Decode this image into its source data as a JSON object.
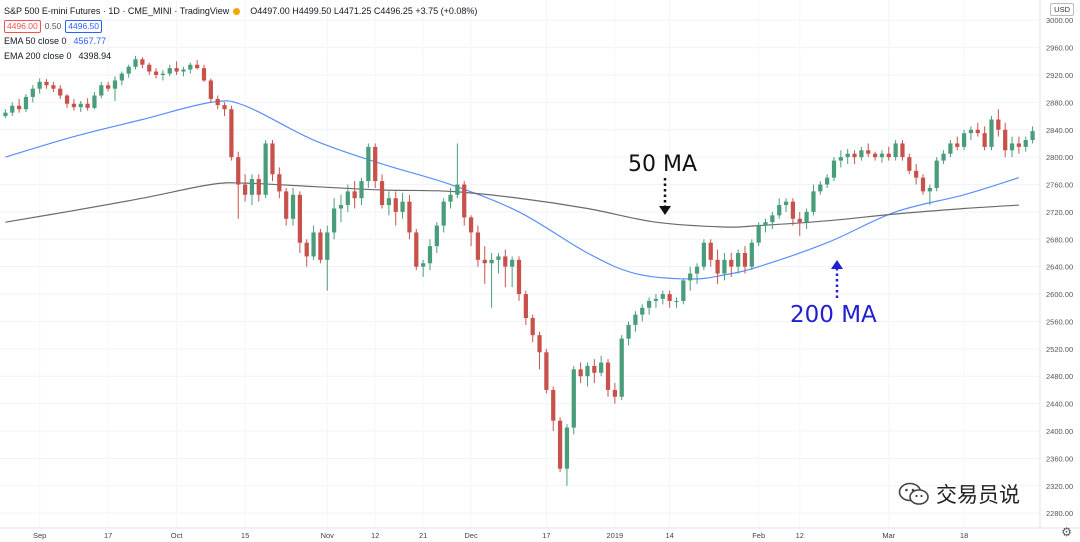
{
  "header": {
    "symbol": "S&P 500 E-mini Futures · 1D · CME_MINI · TradingView",
    "ohlc": "O4497.00 H4499.50 L4471.25 C4496.25 +3.75 (+0.08%)",
    "bid": "4496.00",
    "spread": "0.50",
    "ask": "4496.50",
    "ema50_label": "EMA 50 close 0",
    "ema50_value": "4567.77",
    "ema200_label": "EMA 200 close 0",
    "ema200_value": "4398.94"
  },
  "currency": "USD",
  "watermark": "交易员说",
  "colors": {
    "up": "#26a69a",
    "down": "#ef5350",
    "up_body": "#4a9d7a",
    "down_body": "#c8524b",
    "ema50": "#5b8ff9",
    "ema200": "#6b6b6b",
    "annotation_blue": "#2020d0"
  },
  "icons": {
    "gear": "gear-icon",
    "watermark": "wechat-icon"
  },
  "chart_data": {
    "type": "candlestick",
    "ylim": [
      2270,
      3010
    ],
    "y_ticks": [
      3000,
      2960,
      2920,
      2880,
      2840,
      2800,
      2760,
      2720,
      2680,
      2640,
      2600,
      2560,
      2520,
      2480,
      2440,
      2400,
      2360,
      2320,
      2280
    ],
    "x_ticks": [
      {
        "label": "Sep",
        "index": 5
      },
      {
        "label": "17",
        "index": 15
      },
      {
        "label": "Oct",
        "index": 25
      },
      {
        "label": "15",
        "index": 35
      },
      {
        "label": "Nov",
        "index": 47
      },
      {
        "label": "12",
        "index": 54
      },
      {
        "label": "21",
        "index": 61
      },
      {
        "label": "Dec",
        "index": 68
      },
      {
        "label": "17",
        "index": 79
      },
      {
        "label": "2019",
        "index": 89
      },
      {
        "label": "14",
        "index": 97
      },
      {
        "label": "Feb",
        "index": 110
      },
      {
        "label": "12",
        "index": 116
      },
      {
        "label": "Mar",
        "index": 129
      },
      {
        "label": "18",
        "index": 140
      }
    ],
    "annotations": [
      {
        "text": "50 MA",
        "points_to": "ema200 line",
        "color": "#111111"
      },
      {
        "text": "200 MA",
        "points_to": "ema50 line",
        "color": "#2020d0"
      }
    ],
    "series": [
      {
        "name": "EMA 50 close 0",
        "kind": "line",
        "x": [
          0,
          10,
          20,
          30,
          35,
          45,
          55,
          65,
          75,
          85,
          92,
          100,
          105,
          110,
          120,
          130,
          140,
          148
        ],
        "y": [
          2800,
          2830,
          2855,
          2880,
          2875,
          2825,
          2790,
          2760,
          2720,
          2660,
          2630,
          2622,
          2628,
          2640,
          2675,
          2720,
          2745,
          2770
        ]
      },
      {
        "name": "EMA 200 close 0",
        "kind": "line",
        "x": [
          0,
          10,
          20,
          30,
          35,
          45,
          55,
          65,
          75,
          85,
          95,
          105,
          110,
          120,
          130,
          140,
          148
        ],
        "y": [
          2705,
          2722,
          2740,
          2760,
          2762,
          2757,
          2752,
          2750,
          2740,
          2725,
          2705,
          2698,
          2700,
          2707,
          2717,
          2725,
          2730
        ]
      },
      {
        "name": "ES",
        "kind": "candles",
        "ohlc": [
          [
            2860,
            2870,
            2857,
            2865
          ],
          [
            2865,
            2880,
            2860,
            2875
          ],
          [
            2875,
            2885,
            2865,
            2870
          ],
          [
            2870,
            2892,
            2866,
            2888
          ],
          [
            2888,
            2905,
            2880,
            2900
          ],
          [
            2900,
            2915,
            2893,
            2910
          ],
          [
            2910,
            2914,
            2900,
            2905
          ],
          [
            2905,
            2910,
            2895,
            2900
          ],
          [
            2900,
            2905,
            2885,
            2890
          ],
          [
            2890,
            2892,
            2872,
            2878
          ],
          [
            2878,
            2885,
            2868,
            2873
          ],
          [
            2873,
            2882,
            2866,
            2878
          ],
          [
            2878,
            2886,
            2868,
            2872
          ],
          [
            2872,
            2895,
            2870,
            2890
          ],
          [
            2890,
            2910,
            2886,
            2905
          ],
          [
            2905,
            2910,
            2896,
            2900
          ],
          [
            2900,
            2918,
            2882,
            2912
          ],
          [
            2912,
            2925,
            2905,
            2922
          ],
          [
            2922,
            2935,
            2916,
            2932
          ],
          [
            2932,
            2948,
            2928,
            2943
          ],
          [
            2943,
            2946,
            2930,
            2935
          ],
          [
            2935,
            2938,
            2920,
            2925
          ],
          [
            2925,
            2930,
            2915,
            2920
          ],
          [
            2920,
            2927,
            2912,
            2922
          ],
          [
            2922,
            2935,
            2918,
            2930
          ],
          [
            2930,
            2940,
            2920,
            2925
          ],
          [
            2925,
            2932,
            2918,
            2928
          ],
          [
            2928,
            2938,
            2922,
            2935
          ],
          [
            2935,
            2942,
            2928,
            2930
          ],
          [
            2930,
            2935,
            2910,
            2912
          ],
          [
            2912,
            2915,
            2880,
            2885
          ],
          [
            2885,
            2890,
            2870,
            2876
          ],
          [
            2876,
            2880,
            2860,
            2870
          ],
          [
            2870,
            2875,
            2795,
            2800
          ],
          [
            2800,
            2808,
            2710,
            2760
          ],
          [
            2760,
            2775,
            2735,
            2745
          ],
          [
            2745,
            2775,
            2730,
            2768
          ],
          [
            2768,
            2775,
            2735,
            2745
          ],
          [
            2745,
            2825,
            2740,
            2820
          ],
          [
            2820,
            2825,
            2765,
            2775
          ],
          [
            2775,
            2785,
            2740,
            2750
          ],
          [
            2750,
            2755,
            2700,
            2710
          ],
          [
            2710,
            2755,
            2700,
            2745
          ],
          [
            2745,
            2750,
            2660,
            2675
          ],
          [
            2675,
            2680,
            2640,
            2655
          ],
          [
            2655,
            2700,
            2650,
            2690
          ],
          [
            2690,
            2695,
            2645,
            2650
          ],
          [
            2650,
            2700,
            2605,
            2690
          ],
          [
            2690,
            2740,
            2680,
            2725
          ],
          [
            2725,
            2745,
            2705,
            2730
          ],
          [
            2730,
            2760,
            2720,
            2750
          ],
          [
            2750,
            2765,
            2725,
            2740
          ],
          [
            2740,
            2770,
            2730,
            2765
          ],
          [
            2765,
            2820,
            2755,
            2815
          ],
          [
            2815,
            2820,
            2755,
            2765
          ],
          [
            2765,
            2775,
            2725,
            2730
          ],
          [
            2730,
            2750,
            2715,
            2740
          ],
          [
            2740,
            2750,
            2700,
            2720
          ],
          [
            2720,
            2748,
            2710,
            2735
          ],
          [
            2735,
            2745,
            2680,
            2690
          ],
          [
            2690,
            2695,
            2635,
            2640
          ],
          [
            2640,
            2650,
            2625,
            2645
          ],
          [
            2645,
            2680,
            2635,
            2670
          ],
          [
            2670,
            2705,
            2660,
            2700
          ],
          [
            2700,
            2740,
            2690,
            2735
          ],
          [
            2735,
            2755,
            2725,
            2745
          ],
          [
            2745,
            2820,
            2740,
            2760
          ],
          [
            2760,
            2765,
            2700,
            2712
          ],
          [
            2712,
            2715,
            2670,
            2690
          ],
          [
            2690,
            2700,
            2640,
            2650
          ],
          [
            2650,
            2670,
            2615,
            2645
          ],
          [
            2645,
            2660,
            2580,
            2650
          ],
          [
            2650,
            2660,
            2630,
            2655
          ],
          [
            2655,
            2665,
            2610,
            2640
          ],
          [
            2640,
            2655,
            2610,
            2650
          ],
          [
            2650,
            2655,
            2590,
            2600
          ],
          [
            2600,
            2605,
            2555,
            2565
          ],
          [
            2565,
            2570,
            2530,
            2540
          ],
          [
            2540,
            2545,
            2490,
            2515
          ],
          [
            2515,
            2520,
            2455,
            2460
          ],
          [
            2460,
            2465,
            2400,
            2415
          ],
          [
            2415,
            2420,
            2340,
            2345
          ],
          [
            2345,
            2410,
            2320,
            2405
          ],
          [
            2405,
            2495,
            2395,
            2490
          ],
          [
            2490,
            2500,
            2470,
            2480
          ],
          [
            2480,
            2500,
            2465,
            2495
          ],
          [
            2495,
            2505,
            2470,
            2485
          ],
          [
            2485,
            2510,
            2480,
            2500
          ],
          [
            2500,
            2505,
            2450,
            2460
          ],
          [
            2460,
            2470,
            2440,
            2450
          ],
          [
            2450,
            2540,
            2445,
            2535
          ],
          [
            2535,
            2560,
            2525,
            2555
          ],
          [
            2555,
            2575,
            2545,
            2570
          ],
          [
            2570,
            2585,
            2560,
            2580
          ],
          [
            2580,
            2595,
            2570,
            2590
          ],
          [
            2590,
            2600,
            2580,
            2593
          ],
          [
            2593,
            2605,
            2585,
            2600
          ],
          [
            2600,
            2605,
            2580,
            2590
          ],
          [
            2590,
            2595,
            2580,
            2590
          ],
          [
            2590,
            2622,
            2585,
            2620
          ],
          [
            2620,
            2640,
            2605,
            2630
          ],
          [
            2630,
            2645,
            2615,
            2640
          ],
          [
            2640,
            2680,
            2635,
            2675
          ],
          [
            2675,
            2680,
            2640,
            2650
          ],
          [
            2650,
            2665,
            2615,
            2630
          ],
          [
            2630,
            2660,
            2620,
            2650
          ],
          [
            2650,
            2660,
            2625,
            2640
          ],
          [
            2640,
            2665,
            2630,
            2660
          ],
          [
            2660,
            2670,
            2630,
            2640
          ],
          [
            2640,
            2680,
            2635,
            2675
          ],
          [
            2675,
            2705,
            2670,
            2700
          ],
          [
            2700,
            2710,
            2690,
            2705
          ],
          [
            2705,
            2720,
            2695,
            2715
          ],
          [
            2715,
            2740,
            2710,
            2730
          ],
          [
            2730,
            2740,
            2720,
            2735
          ],
          [
            2735,
            2740,
            2700,
            2710
          ],
          [
            2710,
            2720,
            2685,
            2705
          ],
          [
            2705,
            2725,
            2695,
            2720
          ],
          [
            2720,
            2760,
            2715,
            2750
          ],
          [
            2750,
            2765,
            2745,
            2760
          ],
          [
            2760,
            2775,
            2755,
            2770
          ],
          [
            2770,
            2800,
            2765,
            2795
          ],
          [
            2795,
            2810,
            2785,
            2800
          ],
          [
            2800,
            2812,
            2790,
            2805
          ],
          [
            2805,
            2810,
            2790,
            2800
          ],
          [
            2800,
            2815,
            2795,
            2810
          ],
          [
            2810,
            2820,
            2800,
            2805
          ],
          [
            2805,
            2808,
            2795,
            2800
          ],
          [
            2800,
            2810,
            2792,
            2805
          ],
          [
            2805,
            2815,
            2795,
            2800
          ],
          [
            2800,
            2825,
            2795,
            2820
          ],
          [
            2820,
            2825,
            2795,
            2800
          ],
          [
            2800,
            2805,
            2775,
            2780
          ],
          [
            2780,
            2790,
            2760,
            2770
          ],
          [
            2770,
            2775,
            2745,
            2750
          ],
          [
            2750,
            2760,
            2730,
            2755
          ],
          [
            2755,
            2800,
            2750,
            2795
          ],
          [
            2795,
            2810,
            2790,
            2805
          ],
          [
            2805,
            2825,
            2800,
            2820
          ],
          [
            2820,
            2830,
            2810,
            2815
          ],
          [
            2815,
            2840,
            2810,
            2835
          ],
          [
            2835,
            2845,
            2825,
            2840
          ],
          [
            2840,
            2850,
            2830,
            2835
          ],
          [
            2835,
            2845,
            2810,
            2815
          ],
          [
            2815,
            2860,
            2810,
            2855
          ],
          [
            2855,
            2870,
            2830,
            2840
          ],
          [
            2840,
            2850,
            2800,
            2810
          ],
          [
            2810,
            2830,
            2800,
            2820
          ],
          [
            2820,
            2830,
            2805,
            2815
          ],
          [
            2815,
            2830,
            2808,
            2825
          ],
          [
            2825,
            2845,
            2820,
            2838
          ]
        ]
      }
    ]
  }
}
